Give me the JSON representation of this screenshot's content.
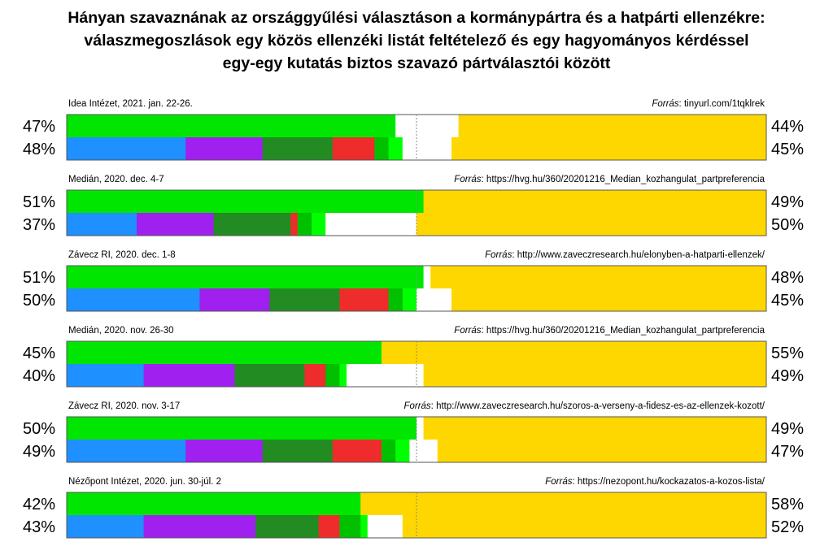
{
  "chart_data": {
    "type": "bar",
    "subtype": "stacked-horizontal-100",
    "title": [
      "Hányan szavaznának az országgyűlési választáson a kormánypártra és a hatpárti ellenzékre:",
      "válaszmegoszlások egy közös ellenzéki listát feltételező és egy hagyományos kérdéssel",
      "egy-egy kutatás biztos szavazó pártválasztói között"
    ],
    "source_prefix": "Forrás",
    "midline": 50,
    "colors": {
      "joint_opposition": "#00e600",
      "blue": "#1e90ff",
      "purple": "#a020f0",
      "darkgreen": "#228b22",
      "red": "#ee2c2c",
      "midgreen": "#00c000",
      "lime": "#00ff00",
      "other": "#ffffff",
      "fidesz": "#ffd700"
    },
    "polls": [
      {
        "label": "Idea Intézet, 2021. jan. 22-26.",
        "source": "tinyurl.com/1tqklrek",
        "top": {
          "left_label": "47%",
          "right_label": "44%",
          "segments": [
            [
              "joint_opposition",
              47
            ],
            [
              "other",
              9
            ],
            [
              "fidesz",
              44
            ]
          ]
        },
        "bottom": {
          "left_label": "48%",
          "right_label": "45%",
          "segments": [
            [
              "blue",
              17
            ],
            [
              "purple",
              11
            ],
            [
              "darkgreen",
              10
            ],
            [
              "red",
              6
            ],
            [
              "midgreen",
              2
            ],
            [
              "lime",
              2
            ],
            [
              "other",
              7
            ],
            [
              "fidesz",
              45
            ]
          ]
        }
      },
      {
        "label": "Medián, 2020. dec. 4-7",
        "source": "https://hvg.hu/360/20201216_Median_kozhangulat_partpreferencia",
        "top": {
          "left_label": "51%",
          "right_label": "49%",
          "segments": [
            [
              "joint_opposition",
              51
            ],
            [
              "fidesz",
              49
            ]
          ]
        },
        "bottom": {
          "left_label": "37%",
          "right_label": "50%",
          "segments": [
            [
              "blue",
              10
            ],
            [
              "purple",
              11
            ],
            [
              "darkgreen",
              11
            ],
            [
              "red",
              1
            ],
            [
              "midgreen",
              2
            ],
            [
              "lime",
              2
            ],
            [
              "other",
              13
            ],
            [
              "fidesz",
              50
            ]
          ]
        }
      },
      {
        "label": "Závecz RI, 2020. dec. 1-8",
        "source": "http://www.zaveczresearch.hu/elonyben-a-hatparti-ellenzek/",
        "top": {
          "left_label": "51%",
          "right_label": "48%",
          "segments": [
            [
              "joint_opposition",
              51
            ],
            [
              "other",
              1
            ],
            [
              "fidesz",
              48
            ]
          ]
        },
        "bottom": {
          "left_label": "50%",
          "right_label": "45%",
          "segments": [
            [
              "blue",
              19
            ],
            [
              "purple",
              10
            ],
            [
              "darkgreen",
              10
            ],
            [
              "red",
              7
            ],
            [
              "midgreen",
              2
            ],
            [
              "lime",
              2
            ],
            [
              "other",
              5
            ],
            [
              "fidesz",
              45
            ]
          ]
        }
      },
      {
        "label": "Medián, 2020. nov. 26-30",
        "source": "https://hvg.hu/360/20201216_Median_kozhangulat_partpreferencia",
        "top": {
          "left_label": "45%",
          "right_label": "55%",
          "segments": [
            [
              "joint_opposition",
              45
            ],
            [
              "fidesz",
              55
            ]
          ]
        },
        "bottom": {
          "left_label": "40%",
          "right_label": "49%",
          "segments": [
            [
              "blue",
              11
            ],
            [
              "purple",
              13
            ],
            [
              "darkgreen",
              10
            ],
            [
              "red",
              3
            ],
            [
              "midgreen",
              2
            ],
            [
              "lime",
              1
            ],
            [
              "other",
              11
            ],
            [
              "fidesz",
              49
            ]
          ]
        }
      },
      {
        "label": "Závecz RI, 2020. nov. 3-17",
        "source": "http://www.zaveczresearch.hu/szoros-a-verseny-a-fidesz-es-az-ellenzek-kozott/",
        "top": {
          "left_label": "50%",
          "right_label": "49%",
          "segments": [
            [
              "joint_opposition",
              50
            ],
            [
              "other",
              1
            ],
            [
              "fidesz",
              49
            ]
          ]
        },
        "bottom": {
          "left_label": "49%",
          "right_label": "47%",
          "segments": [
            [
              "blue",
              17
            ],
            [
              "purple",
              11
            ],
            [
              "darkgreen",
              10
            ],
            [
              "red",
              7
            ],
            [
              "midgreen",
              2
            ],
            [
              "lime",
              2
            ],
            [
              "other",
              4
            ],
            [
              "fidesz",
              47
            ]
          ]
        }
      },
      {
        "label": "Nézőpont Intézet, 2020. jun. 30-júl. 2",
        "source": "https://nezopont.hu/kockazatos-a-kozos-lista/",
        "top": {
          "left_label": "42%",
          "right_label": "58%",
          "segments": [
            [
              "joint_opposition",
              42
            ],
            [
              "fidesz",
              58
            ]
          ]
        },
        "bottom": {
          "left_label": "43%",
          "right_label": "52%",
          "segments": [
            [
              "blue",
              11
            ],
            [
              "purple",
              16
            ],
            [
              "darkgreen",
              9
            ],
            [
              "red",
              3
            ],
            [
              "midgreen",
              3
            ],
            [
              "lime",
              1
            ],
            [
              "other",
              5
            ],
            [
              "fidesz",
              52
            ]
          ]
        }
      }
    ]
  }
}
